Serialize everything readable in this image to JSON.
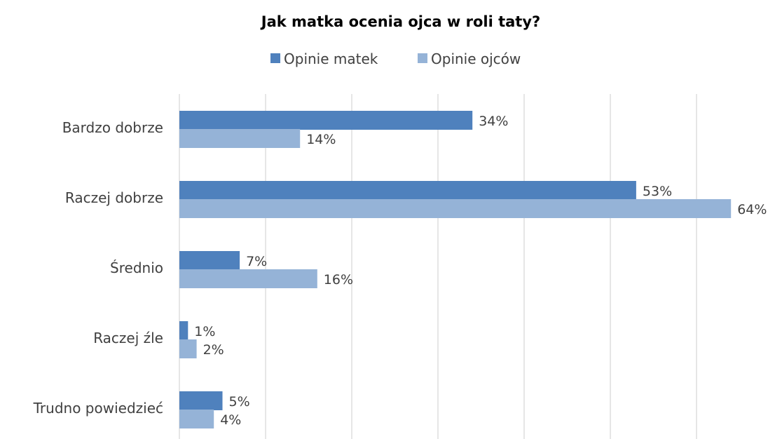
{
  "chart_data": {
    "type": "bar",
    "orientation": "horizontal",
    "title": "Jak matka ocenia ojca w roli taty?",
    "categories": [
      "Bardzo dobrze",
      "Raczej dobrze",
      "Średnio",
      "Raczej źle",
      "Trudno powiedzieć"
    ],
    "series": [
      {
        "name": "Opinie matek",
        "values": [
          34,
          53,
          7,
          1,
          5
        ],
        "labels": [
          "34%",
          "53%",
          "7%",
          "1%",
          "5%"
        ],
        "color": "#4f81bd"
      },
      {
        "name": "Opinie ojców",
        "values": [
          14,
          64,
          16,
          2,
          4
        ],
        "labels": [
          "14%",
          "64%",
          "16%",
          "2%",
          "4%"
        ],
        "color": "#95b3d7"
      }
    ],
    "xlim": [
      0,
      70
    ],
    "grid": true,
    "legend_position": "top",
    "xlabel": "",
    "ylabel": "",
    "value_axis_labels_shown": false
  }
}
